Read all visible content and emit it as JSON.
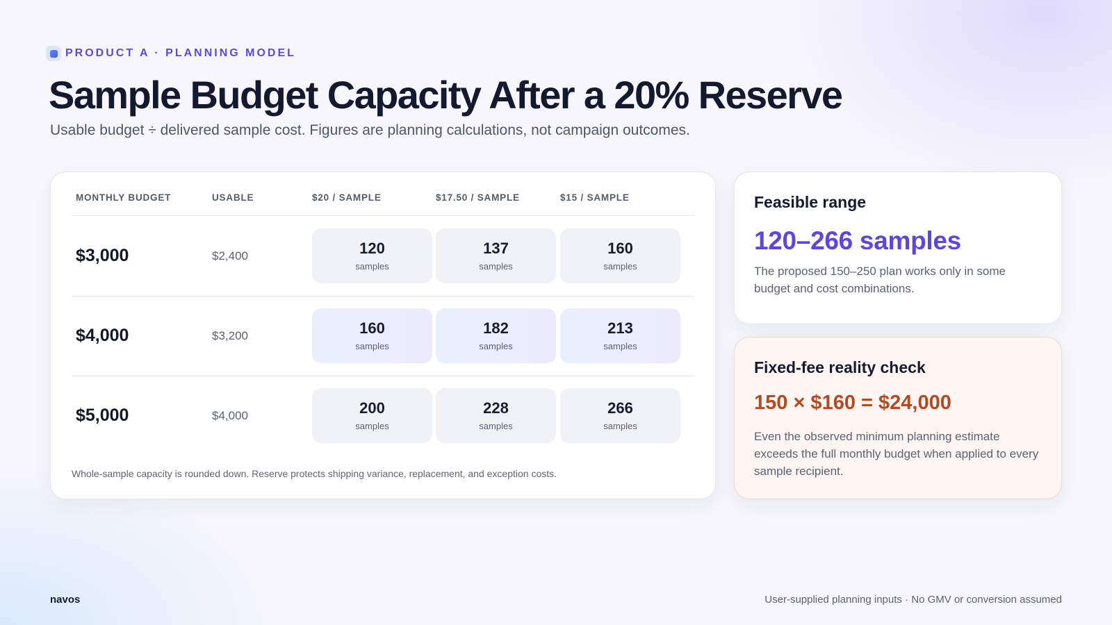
{
  "header": {
    "eyebrow": "PRODUCT A · PLANNING MODEL",
    "title": "Sample Budget Capacity After a 20% Reserve",
    "subtitle": "Usable budget ÷ delivered sample cost. Figures are planning calculations, not campaign outcomes."
  },
  "table": {
    "columns": [
      "MONTHLY BUDGET",
      "USABLE",
      "$20 / SAMPLE",
      "$17.50 / SAMPLE",
      "$15 / SAMPLE"
    ],
    "unit_label": "samples",
    "rows": [
      {
        "budget": "$3,000",
        "usable": "$2,400",
        "values": [
          "120",
          "137",
          "160"
        ],
        "highlighted": false
      },
      {
        "budget": "$4,000",
        "usable": "$3,200",
        "values": [
          "160",
          "182",
          "213"
        ],
        "highlighted": true
      },
      {
        "budget": "$5,000",
        "usable": "$4,000",
        "values": [
          "200",
          "228",
          "266"
        ],
        "highlighted": false
      }
    ],
    "footnote": "Whole-sample capacity is rounded down. Reserve protects shipping variance, replacement, and exception costs."
  },
  "range_card": {
    "title": "Feasible range",
    "value": "120–266 samples",
    "body": "The proposed 150–250 plan works only in some budget and cost combinations."
  },
  "check_card": {
    "title": "Fixed-fee reality check",
    "value": "150 × $160 = $24,000",
    "body": "Even the observed minimum planning estimate exceeds the full monthly budget when applied to every sample recipient."
  },
  "footer": {
    "brand": "navos",
    "note": "User-supplied planning inputs · No GMV or conversion assumed"
  },
  "colors": {
    "accent_purple": "#5b46de",
    "accent_rust": "#b24a22",
    "text_dark": "#131a2f"
  }
}
